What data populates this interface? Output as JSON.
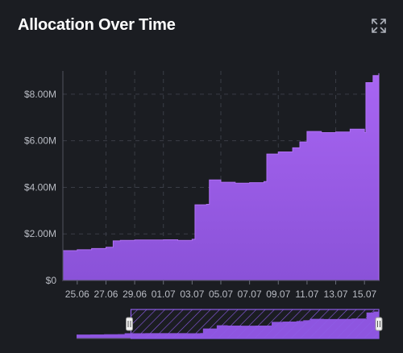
{
  "header": {
    "title": "Allocation Over Time",
    "expand_icon": "expand-icon"
  },
  "colors": {
    "background": "#1b1d22",
    "area_top": "#a65ff0",
    "area_bottom": "#8a4fd4",
    "grid": "#3a3d46",
    "axis_text": "#b9bcc4",
    "navigator_fill": "#8e55e0"
  },
  "chart_data": {
    "type": "area",
    "title": "Allocation Over Time",
    "xlabel": "",
    "ylabel": "",
    "x_ticks": [
      "25.06",
      "27.06",
      "29.06",
      "01.07",
      "03.07",
      "05.07",
      "07.07",
      "09.07",
      "11.07",
      "13.07",
      "15.07"
    ],
    "y_ticks": [
      "$0",
      "$2.00M",
      "$4.00M",
      "$6.00M",
      "$8.00M"
    ],
    "ylim": [
      0,
      9000000
    ],
    "x_range": [
      "2024-06-24",
      "2024-07-16"
    ],
    "grid": true,
    "series": [
      {
        "values": [
          {
            "x": "2024-06-24",
            "y": 1280000
          },
          {
            "x": "2024-06-25",
            "y": 1320000
          },
          {
            "x": "2024-06-26",
            "y": 1370000
          },
          {
            "x": "2024-06-27",
            "y": 1430000
          },
          {
            "x": "2024-06-27.5",
            "y": 1700000
          },
          {
            "x": "2024-06-28",
            "y": 1720000
          },
          {
            "x": "2024-06-29",
            "y": 1740000
          },
          {
            "x": "2024-06-30",
            "y": 1740000
          },
          {
            "x": "2024-07-01",
            "y": 1750000
          },
          {
            "x": "2024-07-02",
            "y": 1720000
          },
          {
            "x": "2024-07-03",
            "y": 1770000
          },
          {
            "x": "2024-07-03.2",
            "y": 3250000
          },
          {
            "x": "2024-07-04",
            "y": 3270000
          },
          {
            "x": "2024-07-04.2",
            "y": 4320000
          },
          {
            "x": "2024-07-05",
            "y": 4220000
          },
          {
            "x": "2024-07-06",
            "y": 4180000
          },
          {
            "x": "2024-07-07",
            "y": 4200000
          },
          {
            "x": "2024-07-08",
            "y": 4250000
          },
          {
            "x": "2024-07-08.2",
            "y": 5430000
          },
          {
            "x": "2024-07-09",
            "y": 5520000
          },
          {
            "x": "2024-07-10",
            "y": 5700000
          },
          {
            "x": "2024-07-10.5",
            "y": 5950000
          },
          {
            "x": "2024-07-11",
            "y": 6400000
          },
          {
            "x": "2024-07-12",
            "y": 6350000
          },
          {
            "x": "2024-07-13",
            "y": 6380000
          },
          {
            "x": "2024-07-14",
            "y": 6500000
          },
          {
            "x": "2024-07-15",
            "y": 6350000
          },
          {
            "x": "2024-07-15.1",
            "y": 8500000
          },
          {
            "x": "2024-07-15.6",
            "y": 8800000
          },
          {
            "x": "2024-07-16",
            "y": 8900000
          }
        ]
      }
    ]
  },
  "navigator": {
    "left_handle_icon": "grip-icon",
    "right_handle_icon": "grip-icon",
    "selection_fraction": [
      0.18,
      1.0
    ]
  }
}
